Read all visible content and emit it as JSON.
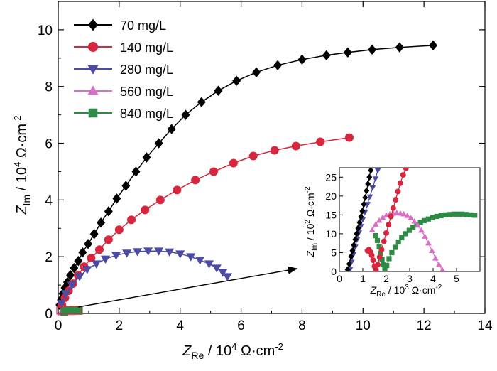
{
  "chart_data": [
    {
      "type": "scatter",
      "xlabel": "Z_Re / 10^4 Ω·cm^-2",
      "ylabel": "Z_Im / 10^4 Ω·cm^-2",
      "xlim": [
        0,
        14
      ],
      "ylim": [
        0,
        11
      ],
      "xticks": [
        "0",
        "2",
        "4",
        "6",
        "8",
        "10",
        "12",
        "14"
      ],
      "yticks": [
        "0",
        "2",
        "4",
        "6",
        "8",
        "10"
      ],
      "legend_position": "top-left",
      "grid": false,
      "series": [
        {
          "name": "70 mg/L",
          "color": "#000000",
          "marker": "diamond",
          "x": [
            0.05,
            0.1,
            0.15,
            0.22,
            0.3,
            0.4,
            0.52,
            0.66,
            0.8,
            0.98,
            1.18,
            1.4,
            1.65,
            1.92,
            2.22,
            2.55,
            2.9,
            3.3,
            3.72,
            4.18,
            4.7,
            5.25,
            5.85,
            6.5,
            7.2,
            8.0,
            8.8,
            9.5,
            10.3,
            11.2,
            12.3
          ],
          "y": [
            0.3,
            0.5,
            0.7,
            0.9,
            1.1,
            1.35,
            1.6,
            1.85,
            2.15,
            2.45,
            2.8,
            3.2,
            3.6,
            4.05,
            4.5,
            5.0,
            5.5,
            6.0,
            6.5,
            7.0,
            7.45,
            7.85,
            8.2,
            8.5,
            8.75,
            8.95,
            9.1,
            9.2,
            9.3,
            9.38,
            9.45
          ]
        },
        {
          "name": "140 mg/L",
          "color": "#d7263d",
          "marker": "circle",
          "x": [
            0.12,
            0.22,
            0.34,
            0.48,
            0.65,
            0.85,
            1.08,
            1.35,
            1.65,
            2.0,
            2.4,
            2.85,
            3.35,
            3.9,
            4.5,
            5.1,
            5.75,
            6.4,
            7.1,
            7.8,
            8.6,
            9.55
          ],
          "y": [
            0.3,
            0.55,
            0.8,
            1.05,
            1.35,
            1.65,
            1.95,
            2.25,
            2.6,
            2.95,
            3.3,
            3.65,
            4.0,
            4.35,
            4.7,
            5.0,
            5.3,
            5.55,
            5.75,
            5.9,
            6.05,
            6.2
          ]
        },
        {
          "name": "280 mg/L",
          "color": "#4b4ba3",
          "marker": "triangle-down",
          "x": [
            0.1,
            0.25,
            0.45,
            0.7,
            0.95,
            1.25,
            1.55,
            1.9,
            2.25,
            2.6,
            2.95,
            3.3,
            3.65,
            4.0,
            4.35,
            4.65,
            4.95,
            5.2,
            5.4,
            5.55
          ],
          "y": [
            0.35,
            0.7,
            1.0,
            1.3,
            1.55,
            1.75,
            1.92,
            2.05,
            2.13,
            2.18,
            2.2,
            2.2,
            2.17,
            2.1,
            2.0,
            1.88,
            1.75,
            1.6,
            1.45,
            1.3
          ]
        },
        {
          "name": "560 mg/L",
          "color": "#d86fc4",
          "marker": "triangle-up",
          "x": [
            0.12,
            0.2,
            0.28,
            0.36,
            0.42
          ],
          "y": [
            0.05,
            0.1,
            0.13,
            0.12,
            0.06
          ]
        },
        {
          "name": "840 mg/L",
          "color": "#2e8b45",
          "marker": "square",
          "x": [
            0.2,
            0.3,
            0.4,
            0.5,
            0.6,
            0.68
          ],
          "y": [
            0.05,
            0.1,
            0.13,
            0.14,
            0.12,
            0.09
          ]
        }
      ]
    },
    {
      "type": "scatter",
      "xlabel": "Z_Re / 10^3 Ω·cm^-2",
      "ylabel": "Z_Im / 10^2 Ω·cm^-2",
      "xlim": [
        0,
        6
      ],
      "ylim": [
        0,
        27.5
      ],
      "xticks": [
        "0",
        "1",
        "2",
        "3",
        "4",
        "5"
      ],
      "yticks": [
        "0",
        "5",
        "10",
        "15",
        "20",
        "25"
      ],
      "grid": false,
      "series": [
        {
          "color": "#000000",
          "marker": "diamond",
          "x": [
            0.35,
            0.42,
            0.5,
            0.56,
            0.62,
            0.68,
            0.74,
            0.8,
            0.86,
            0.92,
            0.98,
            1.04,
            1.1,
            1.16,
            1.22,
            1.28,
            1.34
          ],
          "y": [
            0.5,
            2,
            4,
            5.5,
            7,
            8.5,
            10,
            11.5,
            13,
            14.5,
            16,
            17.8,
            19.6,
            21.4,
            23.2,
            25,
            26.8
          ]
        },
        {
          "color": "#d7263d",
          "marker": "circle",
          "x": [
            1.2,
            1.26,
            1.32,
            1.38,
            1.44,
            1.5,
            1.56,
            1.64,
            1.72,
            1.8,
            1.9,
            2.0,
            2.1,
            2.2,
            2.3,
            2.4,
            2.5,
            2.6,
            2.72,
            2.84
          ],
          "y": [
            5.5,
            5.8,
            5.2,
            4.3,
            3.0,
            1.4,
            0.4,
            1.8,
            3.8,
            5.8,
            8,
            10.2,
            12.4,
            14.6,
            16.8,
            19,
            21.2,
            23.4,
            25.6,
            27.4
          ],
          "note": "first points are a small loop near x=1.2–1.5"
        },
        {
          "color": "#4b4ba3",
          "marker": "triangle-down",
          "x": [
            0.45,
            0.52,
            0.6,
            0.68,
            0.76,
            0.84,
            0.92,
            1.0,
            1.1,
            1.2,
            1.3,
            1.42,
            1.54,
            1.64
          ],
          "y": [
            0.5,
            2.5,
            4.5,
            6.5,
            8.5,
            10.3,
            12.0,
            13.8,
            15.8,
            17.8,
            19.8,
            22.2,
            24.6,
            26.8
          ]
        },
        {
          "color": "#d86fc4",
          "marker": "triangle-up",
          "x": [
            1.4,
            1.55,
            1.7,
            1.85,
            2.0,
            2.15,
            2.3,
            2.45,
            2.6,
            2.75,
            2.9,
            3.05,
            3.2,
            3.35,
            3.5,
            3.65,
            3.8,
            3.95,
            4.1,
            4.25,
            4.4
          ],
          "y": [
            11,
            12.5,
            13.5,
            14.3,
            14.9,
            15.2,
            15.4,
            15.5,
            15.4,
            15.2,
            14.8,
            14.2,
            13.3,
            12.2,
            10.9,
            9.3,
            7.5,
            5.5,
            3.5,
            1.8,
            0.4
          ]
        },
        {
          "color": "#2e8b45",
          "marker": "square",
          "x": [
            1.55,
            1.62,
            1.7,
            1.76,
            1.82,
            1.88,
            1.94,
            2.02,
            2.12,
            2.24,
            2.38,
            2.52,
            2.66,
            2.82,
            2.98,
            3.14,
            3.3,
            3.46,
            3.62,
            3.8,
            3.98,
            4.16,
            4.34,
            4.52,
            4.7,
            4.88,
            5.06,
            5.24,
            5.42,
            5.6,
            5.78
          ],
          "y": [
            9.5,
            8.2,
            6.5,
            4.8,
            3.2,
            1.8,
            0.8,
            1.6,
            3.4,
            5.0,
            6.4,
            7.8,
            9.0,
            10.0,
            10.9,
            11.7,
            12.4,
            13.0,
            13.5,
            13.9,
            14.3,
            14.6,
            14.8,
            15.0,
            15.1,
            15.2,
            15.2,
            15.2,
            15.1,
            15.0,
            14.9
          ]
        }
      ]
    }
  ]
}
